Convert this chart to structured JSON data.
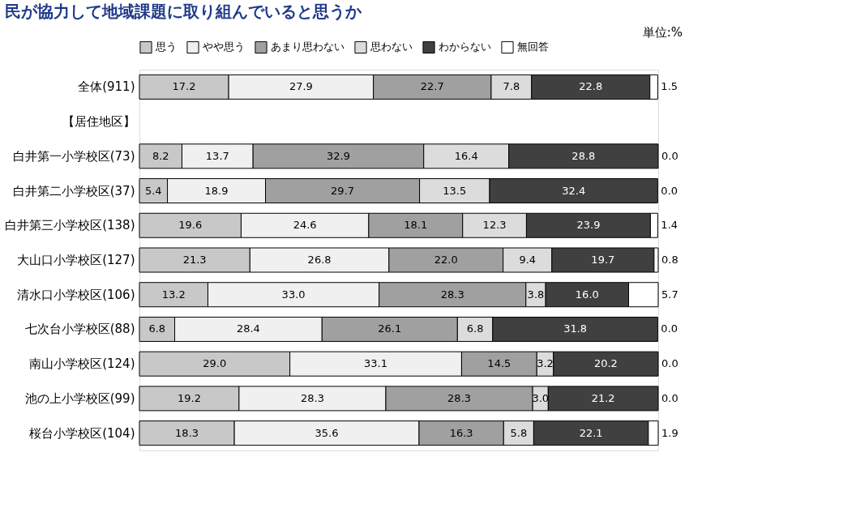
{
  "chart_data": {
    "type": "bar",
    "orientation": "horizontal",
    "stacked": true,
    "legend": "top",
    "title": "民が協力して地域課題に取り組んでいると思うか",
    "annotations": [
      "単位:%"
    ],
    "categories": [
      "全体(911)",
      "【居住地区】",
      "白井第一小学校区(73)",
      "白井第二小学校区(37)",
      "白井第三小学校区(138)",
      "大山口小学校区(127)",
      "清水口小学校区(106)",
      "七次台小学校区(88)",
      "南山小学校区(124)",
      "池の上小学校区(99)",
      "桜台小学校区(104)"
    ],
    "series": [
      {
        "name": "思う",
        "color": "#c8c8c8",
        "values": [
          17.2,
          null,
          8.2,
          5.4,
          19.6,
          21.3,
          13.2,
          6.8,
          29.0,
          19.2,
          18.3
        ],
        "value_labels": [
          "17.2",
          null,
          "8.2",
          "5.4",
          "19.6",
          "21.3",
          "13.2",
          "6.8",
          "29.0",
          "19.2",
          "18.3"
        ]
      },
      {
        "name": "やや思う",
        "color": "#f0f0f0",
        "values": [
          27.9,
          null,
          13.7,
          18.9,
          24.6,
          26.8,
          33.0,
          28.4,
          33.1,
          28.3,
          35.6
        ],
        "value_labels": [
          "27.9",
          null,
          "13.7",
          "18.9",
          "24.6",
          "26.8",
          "33.0",
          "28.4",
          "33.1",
          "28.3",
          "35.6"
        ]
      },
      {
        "name": "あまり思わない",
        "color": "#a0a0a0",
        "values": [
          22.7,
          null,
          32.9,
          29.7,
          18.1,
          22.0,
          28.3,
          26.1,
          14.5,
          28.3,
          16.3
        ],
        "value_labels": [
          "22.7",
          null,
          "32.9",
          "29.7",
          "18.1",
          "22.0",
          "28.3",
          "26.1",
          "14.5",
          "28.3",
          "16.3"
        ]
      },
      {
        "name": "思わない",
        "color": "#dcdcdc",
        "values": [
          7.8,
          null,
          16.4,
          13.5,
          12.3,
          9.4,
          3.8,
          6.8,
          3.2,
          3.0,
          5.8
        ],
        "value_labels": [
          "7.8",
          null,
          "16.4",
          "13.5",
          "12.3",
          "9.4",
          "3.8",
          "6.8",
          "3.2",
          "3.0",
          "5.8"
        ]
      },
      {
        "name": "わからない",
        "color": "#404040",
        "values": [
          22.8,
          null,
          28.8,
          32.4,
          23.9,
          19.7,
          16.0,
          31.8,
          20.2,
          21.2,
          22.1
        ],
        "value_labels": [
          "22.8",
          null,
          "28.8",
          "32.4",
          "23.9",
          "19.7",
          "16.0",
          "31.8",
          "20.2",
          "21.2",
          "22.1"
        ]
      },
      {
        "name": "無回答",
        "color": "#ffffff",
        "values": [
          1.5,
          null,
          0.0,
          0.0,
          1.4,
          0.8,
          5.7,
          0.0,
          0.0,
          0.0,
          1.9
        ],
        "value_labels": [
          "1.5",
          null,
          "0.0",
          "0.0",
          "1.4",
          "0.8",
          "5.7",
          "0.0",
          "0.0",
          "0.0",
          "1.9"
        ]
      }
    ]
  }
}
